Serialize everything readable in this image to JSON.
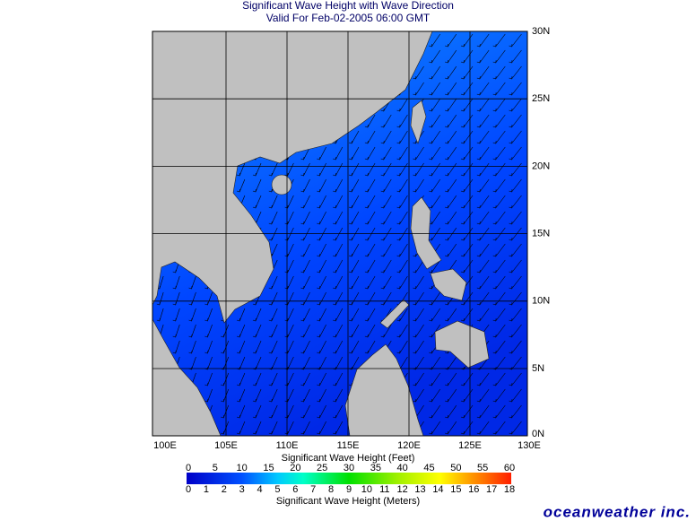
{
  "header": {
    "title": "Significant Wave Height with Wave Direction",
    "subtitle": "Valid For Feb-02-2005 06:00 GMT"
  },
  "map": {
    "longitude_labels": [
      "100E",
      "105E",
      "110E",
      "115E",
      "120E",
      "125E",
      "130E"
    ],
    "latitude_labels": [
      "30N",
      "25N",
      "20N",
      "15N",
      "10N",
      "5N",
      "0N"
    ]
  },
  "colorbar": {
    "feet_title": "Significant Wave Height (Feet)",
    "feet_ticks": [
      0,
      5,
      10,
      15,
      20,
      25,
      30,
      35,
      40,
      45,
      50,
      55,
      60
    ],
    "meters_ticks": [
      0,
      1,
      2,
      3,
      4,
      5,
      6,
      7,
      8,
      9,
      10,
      11,
      12,
      13,
      14,
      15,
      16,
      17,
      18
    ],
    "meters_title": "Significant Wave Height (Meters)"
  },
  "brand": "oceanweather inc."
}
